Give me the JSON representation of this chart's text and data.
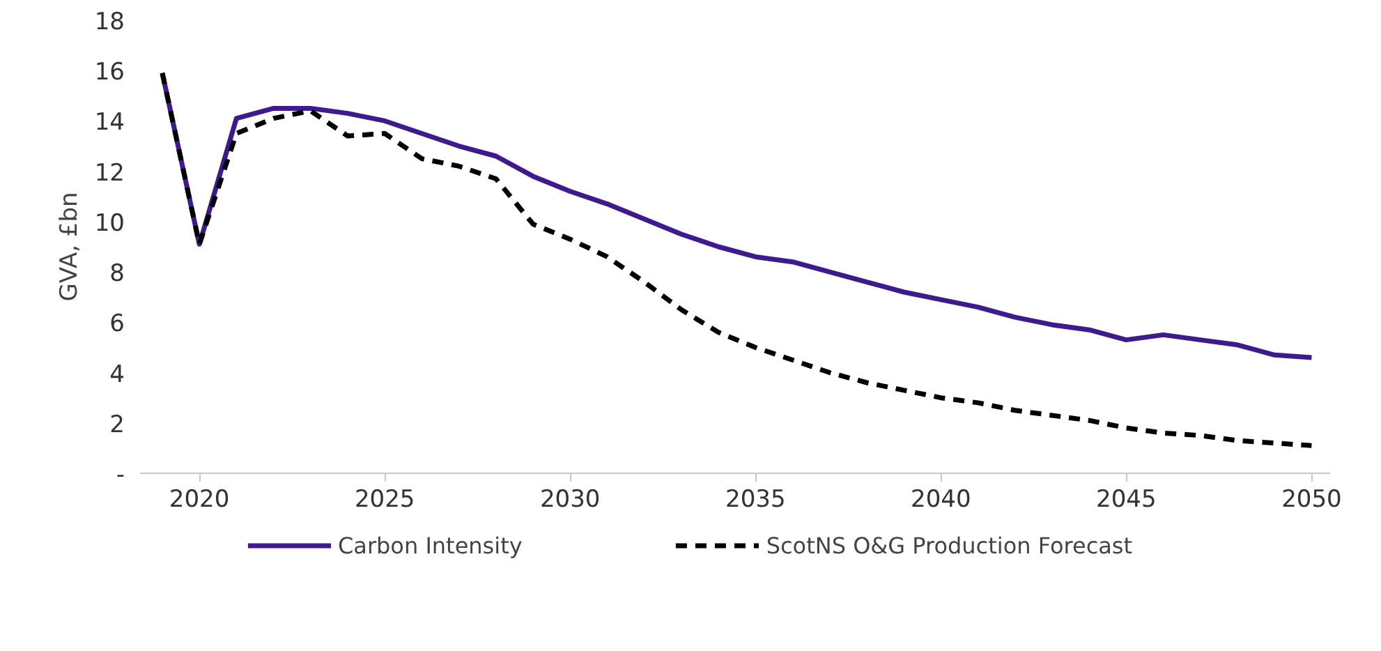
{
  "chart_data": {
    "type": "line",
    "ylabel": "GVA, £bn",
    "x": [
      2019,
      2020,
      2021,
      2022,
      2023,
      2024,
      2025,
      2026,
      2027,
      2028,
      2029,
      2030,
      2031,
      2032,
      2033,
      2034,
      2035,
      2036,
      2037,
      2038,
      2039,
      2040,
      2041,
      2042,
      2043,
      2044,
      2045,
      2046,
      2047,
      2048,
      2049,
      2050
    ],
    "series": [
      {
        "name": "Carbon Intensity",
        "color": "#3e1a8e",
        "line_style": "solid",
        "values": [
          15.9,
          9.1,
          14.1,
          14.5,
          14.5,
          14.3,
          14.0,
          13.5,
          13.0,
          12.6,
          11.8,
          11.2,
          10.7,
          10.1,
          9.5,
          9.0,
          8.6,
          8.4,
          8.0,
          7.6,
          7.2,
          6.9,
          6.6,
          6.2,
          5.9,
          5.7,
          5.3,
          5.5,
          5.3,
          5.1,
          4.7,
          4.6
        ]
      },
      {
        "name": "ScotNS O&G Production Forecast",
        "color": "#000000",
        "line_style": "dashed",
        "values": [
          15.9,
          9.1,
          13.5,
          14.1,
          14.4,
          13.4,
          13.5,
          12.5,
          12.2,
          11.7,
          9.9,
          9.3,
          8.6,
          7.6,
          6.5,
          5.6,
          5.0,
          4.5,
          4.0,
          3.6,
          3.3,
          3.0,
          2.8,
          2.5,
          2.3,
          2.1,
          1.8,
          1.6,
          1.5,
          1.3,
          1.2,
          1.1
        ]
      }
    ],
    "xlim": [
      2018.4,
      2050.5
    ],
    "xticks": [
      2020,
      2025,
      2030,
      2035,
      2040,
      2045,
      2050
    ],
    "ylim": [
      0,
      18
    ],
    "yticks": [
      {
        "value": 0,
        "label": "-"
      },
      2,
      4,
      6,
      8,
      10,
      12,
      14,
      16,
      18
    ],
    "grid": false,
    "legend": "bottom",
    "marker": "none"
  }
}
